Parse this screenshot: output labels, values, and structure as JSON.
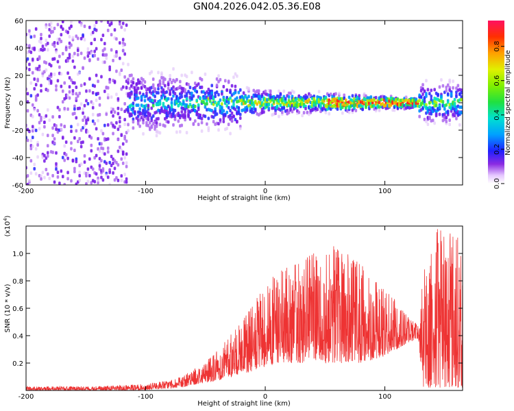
{
  "title": "GN04.2026.042.05.36.E08",
  "chart_data": [
    {
      "type": "heatmap",
      "name": "spectrogram",
      "xlabel": "Height of straight line (km)",
      "ylabel": "Frequency (Hz)",
      "xlim": [
        -200,
        165
      ],
      "ylim": [
        -60,
        60
      ],
      "xticks": [
        -200,
        -100,
        0,
        100
      ],
      "yticks": [
        -60,
        -40,
        -20,
        0,
        20,
        40,
        60
      ],
      "colorbar": {
        "label": "Normalized spectral amplitude",
        "range": [
          0,
          0.95
        ],
        "ticks": [
          0.0,
          0.2,
          0.4,
          0.6,
          0.8
        ]
      }
    },
    {
      "type": "line",
      "name": "snr",
      "xlabel": "Height of straight line (km)",
      "ylabel": "SNR (10 * v/v)",
      "scale_label": "(x10",
      "scale_exp": "4",
      "scale_close": ")",
      "color": "#ee3333",
      "xlim": [
        -200,
        165
      ],
      "ylim": [
        0,
        1.2
      ],
      "xticks": [
        -200,
        -100,
        0,
        100
      ],
      "yticks": [
        0.2,
        0.4,
        0.6,
        0.8,
        1.0
      ],
      "envelope": {
        "x": [
          -200,
          -150,
          -110,
          -90,
          -70,
          -55,
          -40,
          -20,
          -5,
          0,
          20,
          40,
          60,
          80,
          100,
          120,
          128,
          132,
          145,
          160,
          165
        ],
        "low": [
          0.0,
          0.0,
          0.0,
          0.01,
          0.02,
          0.05,
          0.07,
          0.12,
          0.15,
          0.18,
          0.2,
          0.2,
          0.2,
          0.2,
          0.25,
          0.35,
          0.38,
          0.02,
          0.02,
          0.02,
          0.02
        ],
        "high": [
          0.03,
          0.03,
          0.04,
          0.06,
          0.1,
          0.18,
          0.3,
          0.5,
          0.7,
          0.8,
          0.92,
          1.0,
          1.07,
          0.92,
          0.75,
          0.55,
          0.48,
          0.95,
          1.2,
          1.2,
          0.9
        ]
      }
    }
  ]
}
